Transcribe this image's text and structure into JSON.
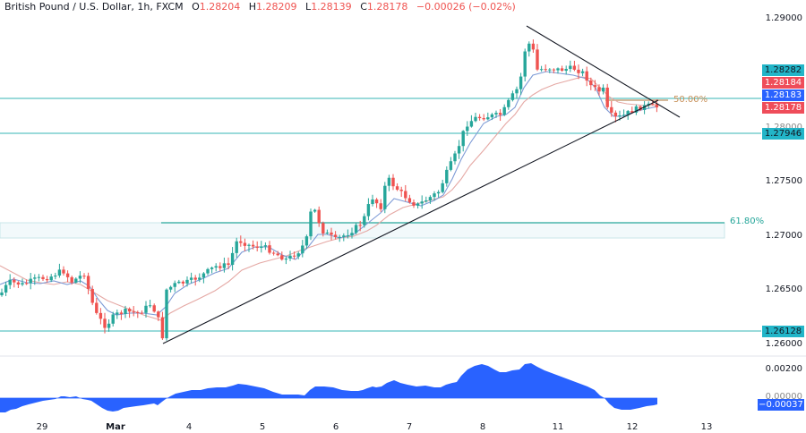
{
  "header": {
    "symbol": "British Pound / U.S. Dollar, 1h, FXCM",
    "open_label": "O",
    "open": "1.28204",
    "high_label": "H",
    "high": "1.28209",
    "low_label": "L",
    "low": "1.28139",
    "close_label": "C",
    "close": "1.28178",
    "change": "−0.00026 (−0.02%)"
  },
  "price_axis": {
    "ticks": [
      "1.29000",
      "1.28000",
      "1.27500",
      "1.27000",
      "1.26500",
      "1.26000"
    ],
    "labels": [
      {
        "value": "1.28282",
        "color": "#22b5c8",
        "text_color": "#131722"
      },
      {
        "value": "1.28184",
        "color": "#ef4d5a",
        "text_color": "#ffffff"
      },
      {
        "value": "1.28183",
        "color": "#2962ff",
        "text_color": "#ffffff"
      },
      {
        "value": "1.28178",
        "color": "#ef4d5a",
        "text_color": "#ffffff"
      },
      {
        "value": "1.27946",
        "color": "#22b5c8",
        "text_color": "#131722"
      },
      {
        "value": "1.26128",
        "color": "#22b5c8",
        "text_color": "#131722"
      }
    ]
  },
  "indicator_axis": {
    "ticks": [
      "0.00200",
      "0.00000"
    ],
    "current": "−0.00037",
    "current_color": "#2962ff"
  },
  "time_axis": {
    "labels": [
      "29",
      "Mar",
      "4",
      "5",
      "6",
      "7",
      "8",
      "11",
      "12",
      "13"
    ]
  },
  "annotations": {
    "fib_50": "50.00%",
    "fib_618": "61.80%"
  },
  "colors": {
    "up": "#26a69a",
    "down": "#ef5350",
    "horizontal_line": "#5ec4c4",
    "fib_50": "#c8a27a",
    "fib_618_text": "#26a69a",
    "ma_fast": "#7e9bd6",
    "ma_slow": "#e5a8a4",
    "trendline": "#131722",
    "oscillator": "#2962ff"
  },
  "chart_data": {
    "type": "candlestick",
    "title": "British Pound / U.S. Dollar, 1h, FXCM",
    "xlabel": "",
    "ylabel": "",
    "ylim": [
      1.2595,
      1.2915
    ],
    "x_ticks": [
      "29",
      "Mar",
      "4",
      "5",
      "6",
      "7",
      "8",
      "11",
      "12",
      "13"
    ],
    "y_ticks": [
      1.29,
      1.28,
      1.275,
      1.27,
      1.265,
      1.26
    ],
    "ohlc_last": {
      "open": 1.28204,
      "high": 1.28209,
      "low": 1.28139,
      "close": 1.28178,
      "change": -0.00026,
      "change_pct": -0.02
    },
    "approx_close_path": [
      {
        "x": "29",
        "close": 1.2665
      },
      {
        "x": "Mar",
        "close": 1.2625
      },
      {
        "x": "Mar-late",
        "close": 1.2605
      },
      {
        "x": "4",
        "close": 1.2665
      },
      {
        "x": "5",
        "close": 1.2695
      },
      {
        "x": "5-late",
        "close": 1.2735
      },
      {
        "x": "6",
        "close": 1.2705
      },
      {
        "x": "7",
        "close": 1.2745
      },
      {
        "x": "8",
        "close": 1.281
      },
      {
        "x": "8-late",
        "close": 1.289
      },
      {
        "x": "11",
        "close": 1.2825
      },
      {
        "x": "12",
        "close": 1.2797
      },
      {
        "x": "12-late",
        "close": 1.28178
      }
    ],
    "horizontal_levels": [
      1.28282,
      1.28183,
      1.27946,
      1.26128
    ],
    "fibonacci": [
      {
        "label": "50.00%",
        "level": 1.2819
      },
      {
        "label": "61.80%",
        "zone": [
          1.2698,
          1.2713
        ]
      }
    ],
    "trendlines": [
      {
        "name": "ascending support",
        "from": {
          "x": "Mar-late",
          "y": 1.2601
        },
        "to": {
          "x": "12-late",
          "y": 1.2818
        }
      },
      {
        "name": "descending resistance",
        "from": {
          "x": "8-late",
          "y": 1.2893
        },
        "to": {
          "x": "12-late",
          "y": 1.2812
        }
      }
    ],
    "moving_averages": [
      {
        "name": "fast MA",
        "color": "#7e9bd6"
      },
      {
        "name": "slow MA",
        "color": "#e5a8a4"
      }
    ],
    "oscillator": {
      "type": "area",
      "ylim": [
        -0.0008,
        0.0028
      ],
      "y_ticks": [
        0.002,
        0.0
      ],
      "current": -0.00037,
      "approx_values": [
        -0.0005,
        -0.0002,
        0.0001,
        0.0003,
        0.0,
        -0.0004,
        -0.0003,
        0.0,
        0.0007,
        0.0011,
        0.0011,
        0.0005,
        0.0012,
        0.0008,
        0.0006,
        0.0013,
        0.0021,
        0.0018,
        0.0021,
        0.0015,
        0.0011,
        -0.0003,
        -0.0005,
        -0.00037
      ]
    },
    "grid": false,
    "legend": "none"
  }
}
